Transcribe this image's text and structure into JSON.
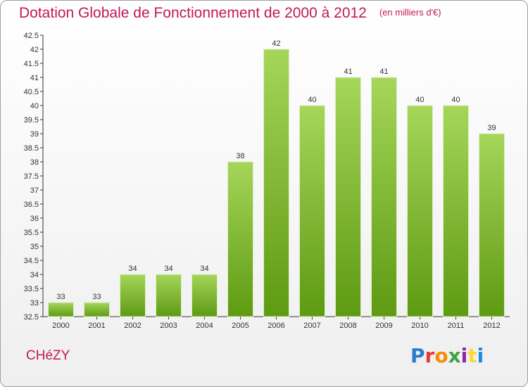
{
  "header": {
    "title": "Dotation Globale de Fonctionnement de 2000 à 2012",
    "unit": "(en milliers d'€)"
  },
  "footer": {
    "commune": "CHéZY",
    "logo_text": "Proxiti",
    "logo_colors": [
      "#2b7bd1",
      "#e53935",
      "#fb8c00",
      "#43a047",
      "#8e24aa",
      "#fdd835",
      "#1e88e5"
    ]
  },
  "colors": {
    "bar_light": "#a5d65a",
    "bar_dark": "#5e9a12",
    "accent": "#c2185b"
  },
  "chart_data": {
    "type": "bar",
    "categories": [
      "2000",
      "2001",
      "2002",
      "2003",
      "2004",
      "2005",
      "2006",
      "2007",
      "2008",
      "2009",
      "2010",
      "2011",
      "2012"
    ],
    "values": [
      33,
      33,
      34,
      34,
      34,
      38,
      42,
      40,
      41,
      41,
      40,
      40,
      39
    ],
    "value_labels": [
      "33",
      "33",
      "34",
      "34",
      "34",
      "38",
      "42",
      "40",
      "41",
      "41",
      "40",
      "40",
      "39"
    ],
    "ylim": [
      32.5,
      42.5
    ],
    "yticks": [
      "32.5",
      "33",
      "33.5",
      "34",
      "34.5",
      "35",
      "35.5",
      "36",
      "36.5",
      "37",
      "37.5",
      "38",
      "38.5",
      "39",
      "39.5",
      "40",
      "40.5",
      "41",
      "41.5",
      "42",
      "42.5"
    ],
    "grid": false
  }
}
